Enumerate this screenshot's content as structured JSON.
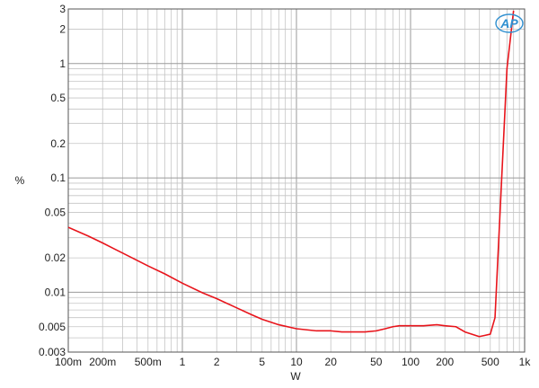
{
  "chart_data": {
    "type": "line",
    "xlabel": "W",
    "ylabel": "%",
    "xscale": "log",
    "yscale": "log",
    "xlim": [
      0.1,
      1000
    ],
    "ylim": [
      0.003,
      3
    ],
    "grid": true,
    "x_ticks": [
      {
        "value": 0.1,
        "label": "100m"
      },
      {
        "value": 0.2,
        "label": "200m"
      },
      {
        "value": 0.5,
        "label": "500m"
      },
      {
        "value": 1,
        "label": "1"
      },
      {
        "value": 2,
        "label": "2"
      },
      {
        "value": 5,
        "label": "5"
      },
      {
        "value": 10,
        "label": "10"
      },
      {
        "value": 20,
        "label": "20"
      },
      {
        "value": 50,
        "label": "50"
      },
      {
        "value": 100,
        "label": "100"
      },
      {
        "value": 200,
        "label": "200"
      },
      {
        "value": 500,
        "label": "500"
      },
      {
        "value": 1000,
        "label": "1k"
      }
    ],
    "y_ticks": [
      {
        "value": 3,
        "label": "3"
      },
      {
        "value": 2,
        "label": "2"
      },
      {
        "value": 1,
        "label": "1"
      },
      {
        "value": 0.5,
        "label": "0.5"
      },
      {
        "value": 0.2,
        "label": "0.2"
      },
      {
        "value": 0.1,
        "label": "0.1"
      },
      {
        "value": 0.05,
        "label": "0.05"
      },
      {
        "value": 0.02,
        "label": "0.02"
      },
      {
        "value": 0.01,
        "label": "0.01"
      },
      {
        "value": 0.005,
        "label": "0.005"
      },
      {
        "value": 0.003,
        "label": "0.003"
      }
    ],
    "series": [
      {
        "color": "#e8141b",
        "x": [
          0.1,
          0.15,
          0.2,
          0.3,
          0.5,
          0.7,
          1,
          1.5,
          2,
          3,
          4,
          5,
          7,
          10,
          15,
          20,
          25,
          30,
          40,
          50,
          60,
          70,
          80,
          100,
          130,
          170,
          200,
          250,
          300,
          400,
          450,
          500,
          550,
          700,
          800
        ],
        "y": [
          0.037,
          0.031,
          0.027,
          0.022,
          0.017,
          0.0145,
          0.012,
          0.0099,
          0.0088,
          0.0073,
          0.0064,
          0.0058,
          0.0052,
          0.0048,
          0.0046,
          0.0046,
          0.0045,
          0.0045,
          0.0045,
          0.0046,
          0.0048,
          0.005,
          0.0051,
          0.0051,
          0.0051,
          0.0052,
          0.0051,
          0.005,
          0.0045,
          0.0041,
          0.0042,
          0.0043,
          0.006,
          0.9,
          2.9
        ]
      }
    ]
  },
  "logo": {
    "text": "AP",
    "color": "#2e8fd0"
  }
}
